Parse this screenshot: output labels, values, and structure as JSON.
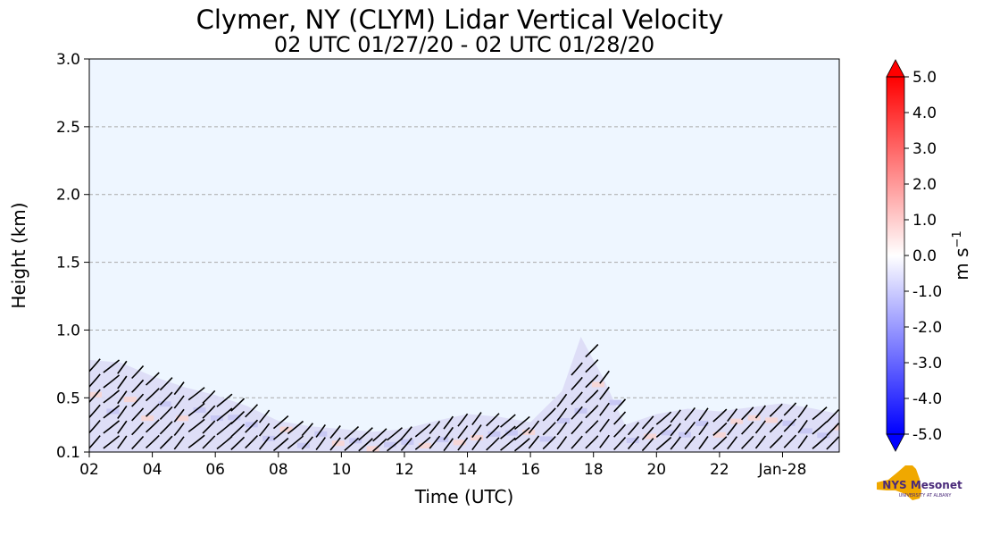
{
  "chart_data": {
    "type": "heatmap",
    "title": "Clymer, NY (CLYM) Lidar Vertical Velocity",
    "subtitle": "02 UTC 01/27/20 - 02 UTC 01/28/20",
    "xlabel": "Time (UTC)",
    "ylabel": "Height (km)",
    "x_ticks": [
      "02",
      "04",
      "06",
      "08",
      "10",
      "12",
      "14",
      "16",
      "18",
      "20",
      "22",
      "Jan-28"
    ],
    "x_tick_hours": [
      2,
      4,
      6,
      8,
      10,
      12,
      14,
      16,
      18,
      20,
      22,
      24
    ],
    "xlim_hours": [
      2,
      25.8
    ],
    "y_ticks": [
      "0.1",
      "0.5",
      "1.0",
      "1.5",
      "2.0",
      "2.5",
      "3.0"
    ],
    "y_tick_values": [
      0.1,
      0.5,
      1.0,
      1.5,
      2.0,
      2.5,
      3.0
    ],
    "ylim": [
      0.1,
      3.0
    ],
    "grid": "horizontal dashed",
    "background_color": "#eef6ff",
    "colorbar": {
      "label": "m s",
      "label_sup": "−1",
      "vmin": -5.0,
      "vmax": 5.0,
      "ticks": [
        "5.0",
        "4.0",
        "3.0",
        "2.0",
        "1.0",
        "0.0",
        "-1.0",
        "-2.0",
        "-3.0",
        "-4.0",
        "-5.0"
      ],
      "tick_values": [
        5,
        4,
        3,
        2,
        1,
        0,
        -1,
        -2,
        -3,
        -4,
        -5
      ],
      "colors": {
        "min": "#0000ff",
        "mid": "#ffffff",
        "max": "#ff0000"
      },
      "extend": "both"
    },
    "boundary_layer_top_km": [
      [
        2.0,
        0.78
      ],
      [
        3.0,
        0.76
      ],
      [
        4.0,
        0.66
      ],
      [
        5.0,
        0.58
      ],
      [
        6.0,
        0.52
      ],
      [
        7.0,
        0.44
      ],
      [
        8.0,
        0.33
      ],
      [
        9.0,
        0.29
      ],
      [
        10.0,
        0.27
      ],
      [
        11.0,
        0.25
      ],
      [
        12.0,
        0.27
      ],
      [
        13.0,
        0.33
      ],
      [
        14.0,
        0.38
      ],
      [
        15.0,
        0.36
      ],
      [
        16.0,
        0.32
      ],
      [
        17.0,
        0.55
      ],
      [
        17.6,
        0.95
      ],
      [
        18.3,
        0.65
      ],
      [
        19.0,
        0.3
      ],
      [
        20.0,
        0.38
      ],
      [
        21.0,
        0.42
      ],
      [
        22.0,
        0.4
      ],
      [
        23.0,
        0.43
      ],
      [
        24.0,
        0.46
      ],
      [
        25.0,
        0.42
      ],
      [
        25.8,
        0.38
      ]
    ]
  },
  "logo": {
    "text": "NYS Mesonet",
    "subtext": "UNIVERSITY AT ALBANY"
  }
}
